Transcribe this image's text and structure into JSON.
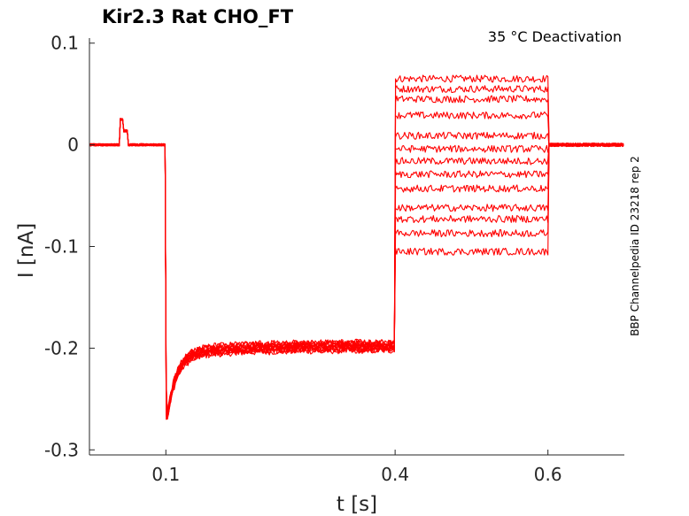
{
  "chart_data": {
    "type": "line",
    "title": "Kir2.3  Rat  CHO_FT",
    "annotation": "35 °C  Deactivation",
    "side_label": "BBP Channelpedia ID 23218 rep 2",
    "xlabel": "t [s]",
    "ylabel": "I [nA]",
    "xlim": [
      0.0,
      0.7
    ],
    "ylim": [
      -0.305,
      0.105
    ],
    "xticks": [
      0.1,
      0.4,
      0.6
    ],
    "xtick_labels": [
      "0.1",
      "0.4",
      "0.6"
    ],
    "yticks": [
      0.1,
      0,
      -0.1,
      -0.2,
      -0.3
    ],
    "ytick_labels": [
      "0.1",
      "0",
      "-0.1",
      "-0.2",
      "-0.3"
    ],
    "grid": false,
    "line_color": "#ff0000",
    "protocol": {
      "baseline_nA": 0.0,
      "artifact_t": [
        0.04,
        0.05
      ],
      "artifact_peak_nA": 0.025,
      "step1_t": [
        0.1,
        0.4
      ],
      "step1_min_nA": -0.27,
      "step1_steady_nA": -0.198,
      "step2_t": [
        0.4,
        0.6
      ],
      "tail_end_t": 0.7
    },
    "series": [
      {
        "step2_level_nA": 0.065
      },
      {
        "step2_level_nA": 0.055
      },
      {
        "step2_level_nA": 0.045
      },
      {
        "step2_level_nA": 0.029
      },
      {
        "step2_level_nA": 0.009
      },
      {
        "step2_level_nA": -0.004
      },
      {
        "step2_level_nA": -0.016
      },
      {
        "step2_level_nA": -0.029
      },
      {
        "step2_level_nA": -0.043
      },
      {
        "step2_level_nA": -0.062
      },
      {
        "step2_level_nA": -0.073
      },
      {
        "step2_level_nA": -0.087
      },
      {
        "step2_level_nA": -0.105
      }
    ]
  }
}
